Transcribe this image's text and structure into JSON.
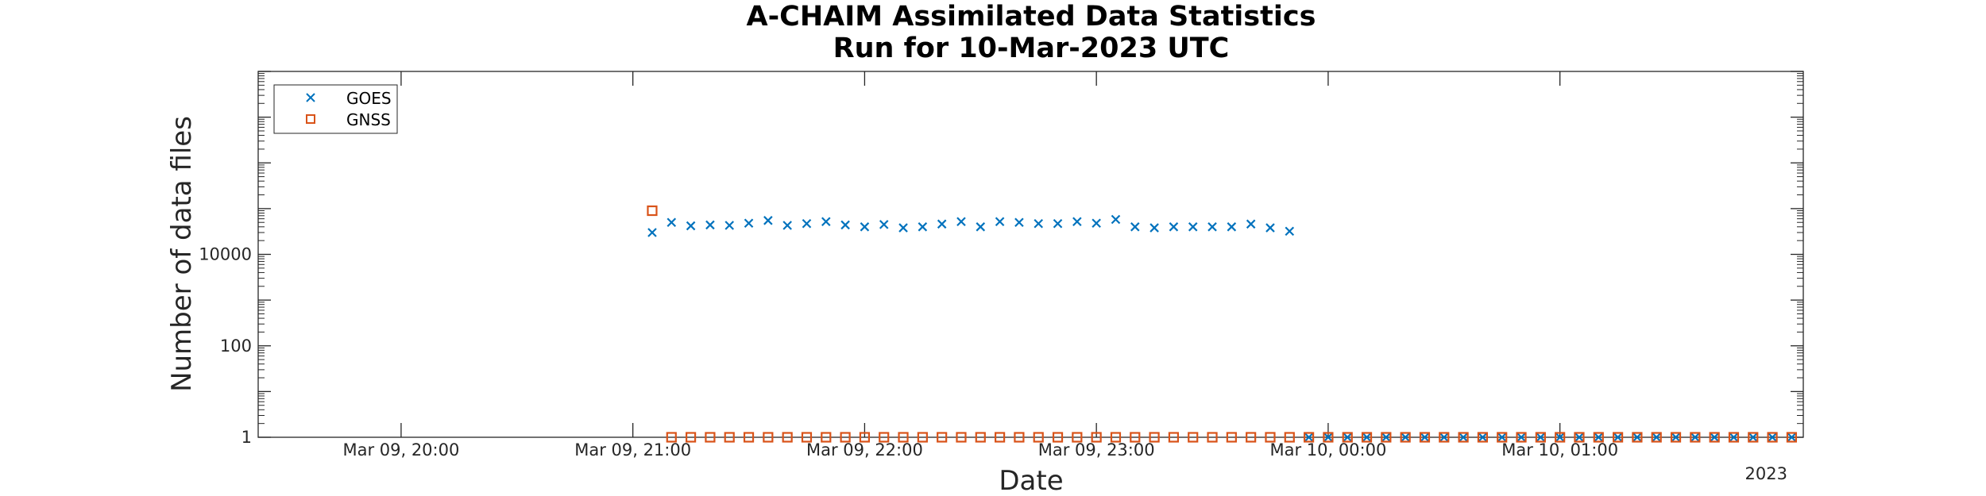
{
  "chart_data": {
    "type": "scatter",
    "title": [
      "A-CHAIM Assimilated Data Statistics",
      "Run for 10-Mar-2023 UTC"
    ],
    "xlabel": "Date",
    "ylabel": "Number of data files",
    "year_label": "2023",
    "x_ticks": [
      {
        "time": "2023-03-09T20:00",
        "label": "Mar 09, 20:00"
      },
      {
        "time": "2023-03-09T21:00",
        "label": "Mar 09, 21:00"
      },
      {
        "time": "2023-03-09T22:00",
        "label": "Mar 09, 22:00"
      },
      {
        "time": "2023-03-09T23:00",
        "label": "Mar 09, 23:00"
      },
      {
        "time": "2023-03-10T00:00",
        "label": "Mar 10, 00:00"
      },
      {
        "time": "2023-03-10T01:00",
        "label": "Mar 10, 01:00"
      }
    ],
    "xlim": [
      "2023-03-09T19:23",
      "2023-03-10T02:03"
    ],
    "y_scale": "log",
    "ylim": [
      1,
      100000000
    ],
    "y_ticks": [
      {
        "value": 1,
        "label": "1"
      },
      {
        "value": 100,
        "label": "100"
      },
      {
        "value": 10000,
        "label": "10000"
      }
    ],
    "grid": false,
    "legend_position": "top-left",
    "series": [
      {
        "name": "GOES",
        "marker": "x",
        "color": "#0072BD",
        "points": [
          [
            "2023-03-09T21:05",
            30000
          ],
          [
            "2023-03-09T21:10",
            50000
          ],
          [
            "2023-03-09T21:15",
            42000
          ],
          [
            "2023-03-09T21:20",
            44000
          ],
          [
            "2023-03-09T21:25",
            43000
          ],
          [
            "2023-03-09T21:30",
            48000
          ],
          [
            "2023-03-09T21:35",
            55000
          ],
          [
            "2023-03-09T21:40",
            43000
          ],
          [
            "2023-03-09T21:45",
            47000
          ],
          [
            "2023-03-09T21:50",
            52000
          ],
          [
            "2023-03-09T21:55",
            44000
          ],
          [
            "2023-03-09T22:00",
            40000
          ],
          [
            "2023-03-09T22:05",
            45000
          ],
          [
            "2023-03-09T22:10",
            38000
          ],
          [
            "2023-03-09T22:15",
            40000
          ],
          [
            "2023-03-09T22:20",
            46000
          ],
          [
            "2023-03-09T22:25",
            52000
          ],
          [
            "2023-03-09T22:30",
            40000
          ],
          [
            "2023-03-09T22:35",
            52000
          ],
          [
            "2023-03-09T22:40",
            50000
          ],
          [
            "2023-03-09T22:45",
            47000
          ],
          [
            "2023-03-09T22:50",
            47000
          ],
          [
            "2023-03-09T22:55",
            52000
          ],
          [
            "2023-03-09T23:00",
            48000
          ],
          [
            "2023-03-09T23:05",
            58000
          ],
          [
            "2023-03-09T23:10",
            40000
          ],
          [
            "2023-03-09T23:15",
            38000
          ],
          [
            "2023-03-09T23:20",
            40000
          ],
          [
            "2023-03-09T23:25",
            40000
          ],
          [
            "2023-03-09T23:30",
            40000
          ],
          [
            "2023-03-09T23:35",
            40000
          ],
          [
            "2023-03-09T23:40",
            46000
          ],
          [
            "2023-03-09T23:45",
            38000
          ],
          [
            "2023-03-09T23:50",
            32000
          ],
          [
            "2023-03-09T23:55",
            1
          ],
          [
            "2023-03-10T00:00",
            1
          ],
          [
            "2023-03-10T00:05",
            1
          ],
          [
            "2023-03-10T00:10",
            1
          ],
          [
            "2023-03-10T00:15",
            1
          ],
          [
            "2023-03-10T00:20",
            1
          ],
          [
            "2023-03-10T00:25",
            1
          ],
          [
            "2023-03-10T00:30",
            1
          ],
          [
            "2023-03-10T00:35",
            1
          ],
          [
            "2023-03-10T00:40",
            1
          ],
          [
            "2023-03-10T00:45",
            1
          ],
          [
            "2023-03-10T00:50",
            1
          ],
          [
            "2023-03-10T00:55",
            1
          ],
          [
            "2023-03-10T01:00",
            1
          ],
          [
            "2023-03-10T01:05",
            1
          ],
          [
            "2023-03-10T01:10",
            1
          ],
          [
            "2023-03-10T01:15",
            1
          ],
          [
            "2023-03-10T01:20",
            1
          ],
          [
            "2023-03-10T01:25",
            1
          ],
          [
            "2023-03-10T01:30",
            1
          ],
          [
            "2023-03-10T01:35",
            1
          ],
          [
            "2023-03-10T01:40",
            1
          ],
          [
            "2023-03-10T01:45",
            1
          ],
          [
            "2023-03-10T01:50",
            1
          ],
          [
            "2023-03-10T01:55",
            1
          ],
          [
            "2023-03-10T02:00",
            1
          ]
        ]
      },
      {
        "name": "GNSS",
        "marker": "square",
        "color": "#D95319",
        "points": [
          [
            "2023-03-09T21:05",
            90000
          ],
          [
            "2023-03-09T21:10",
            1
          ],
          [
            "2023-03-09T21:15",
            1
          ],
          [
            "2023-03-09T21:20",
            1
          ],
          [
            "2023-03-09T21:25",
            1
          ],
          [
            "2023-03-09T21:30",
            1
          ],
          [
            "2023-03-09T21:35",
            1
          ],
          [
            "2023-03-09T21:40",
            1
          ],
          [
            "2023-03-09T21:45",
            1
          ],
          [
            "2023-03-09T21:50",
            1
          ],
          [
            "2023-03-09T21:55",
            1
          ],
          [
            "2023-03-09T22:00",
            1
          ],
          [
            "2023-03-09T22:05",
            1
          ],
          [
            "2023-03-09T22:10",
            1
          ],
          [
            "2023-03-09T22:15",
            1
          ],
          [
            "2023-03-09T22:20",
            1
          ],
          [
            "2023-03-09T22:25",
            1
          ],
          [
            "2023-03-09T22:30",
            1
          ],
          [
            "2023-03-09T22:35",
            1
          ],
          [
            "2023-03-09T22:40",
            1
          ],
          [
            "2023-03-09T22:45",
            1
          ],
          [
            "2023-03-09T22:50",
            1
          ],
          [
            "2023-03-09T22:55",
            1
          ],
          [
            "2023-03-09T23:00",
            1
          ],
          [
            "2023-03-09T23:05",
            1
          ],
          [
            "2023-03-09T23:10",
            1
          ],
          [
            "2023-03-09T23:15",
            1
          ],
          [
            "2023-03-09T23:20",
            1
          ],
          [
            "2023-03-09T23:25",
            1
          ],
          [
            "2023-03-09T23:30",
            1
          ],
          [
            "2023-03-09T23:35",
            1
          ],
          [
            "2023-03-09T23:40",
            1
          ],
          [
            "2023-03-09T23:45",
            1
          ],
          [
            "2023-03-09T23:50",
            1
          ],
          [
            "2023-03-09T23:55",
            1
          ],
          [
            "2023-03-10T00:00",
            1
          ],
          [
            "2023-03-10T00:05",
            1
          ],
          [
            "2023-03-10T00:10",
            1
          ],
          [
            "2023-03-10T00:15",
            1
          ],
          [
            "2023-03-10T00:20",
            1
          ],
          [
            "2023-03-10T00:25",
            1
          ],
          [
            "2023-03-10T00:30",
            1
          ],
          [
            "2023-03-10T00:35",
            1
          ],
          [
            "2023-03-10T00:40",
            1
          ],
          [
            "2023-03-10T00:45",
            1
          ],
          [
            "2023-03-10T00:50",
            1
          ],
          [
            "2023-03-10T00:55",
            1
          ],
          [
            "2023-03-10T01:00",
            1
          ],
          [
            "2023-03-10T01:05",
            1
          ],
          [
            "2023-03-10T01:10",
            1
          ],
          [
            "2023-03-10T01:15",
            1
          ],
          [
            "2023-03-10T01:20",
            1
          ],
          [
            "2023-03-10T01:25",
            1
          ],
          [
            "2023-03-10T01:30",
            1
          ],
          [
            "2023-03-10T01:35",
            1
          ],
          [
            "2023-03-10T01:40",
            1
          ],
          [
            "2023-03-10T01:45",
            1
          ],
          [
            "2023-03-10T01:50",
            1
          ],
          [
            "2023-03-10T01:55",
            1
          ],
          [
            "2023-03-10T02:00",
            1
          ]
        ]
      }
    ]
  }
}
